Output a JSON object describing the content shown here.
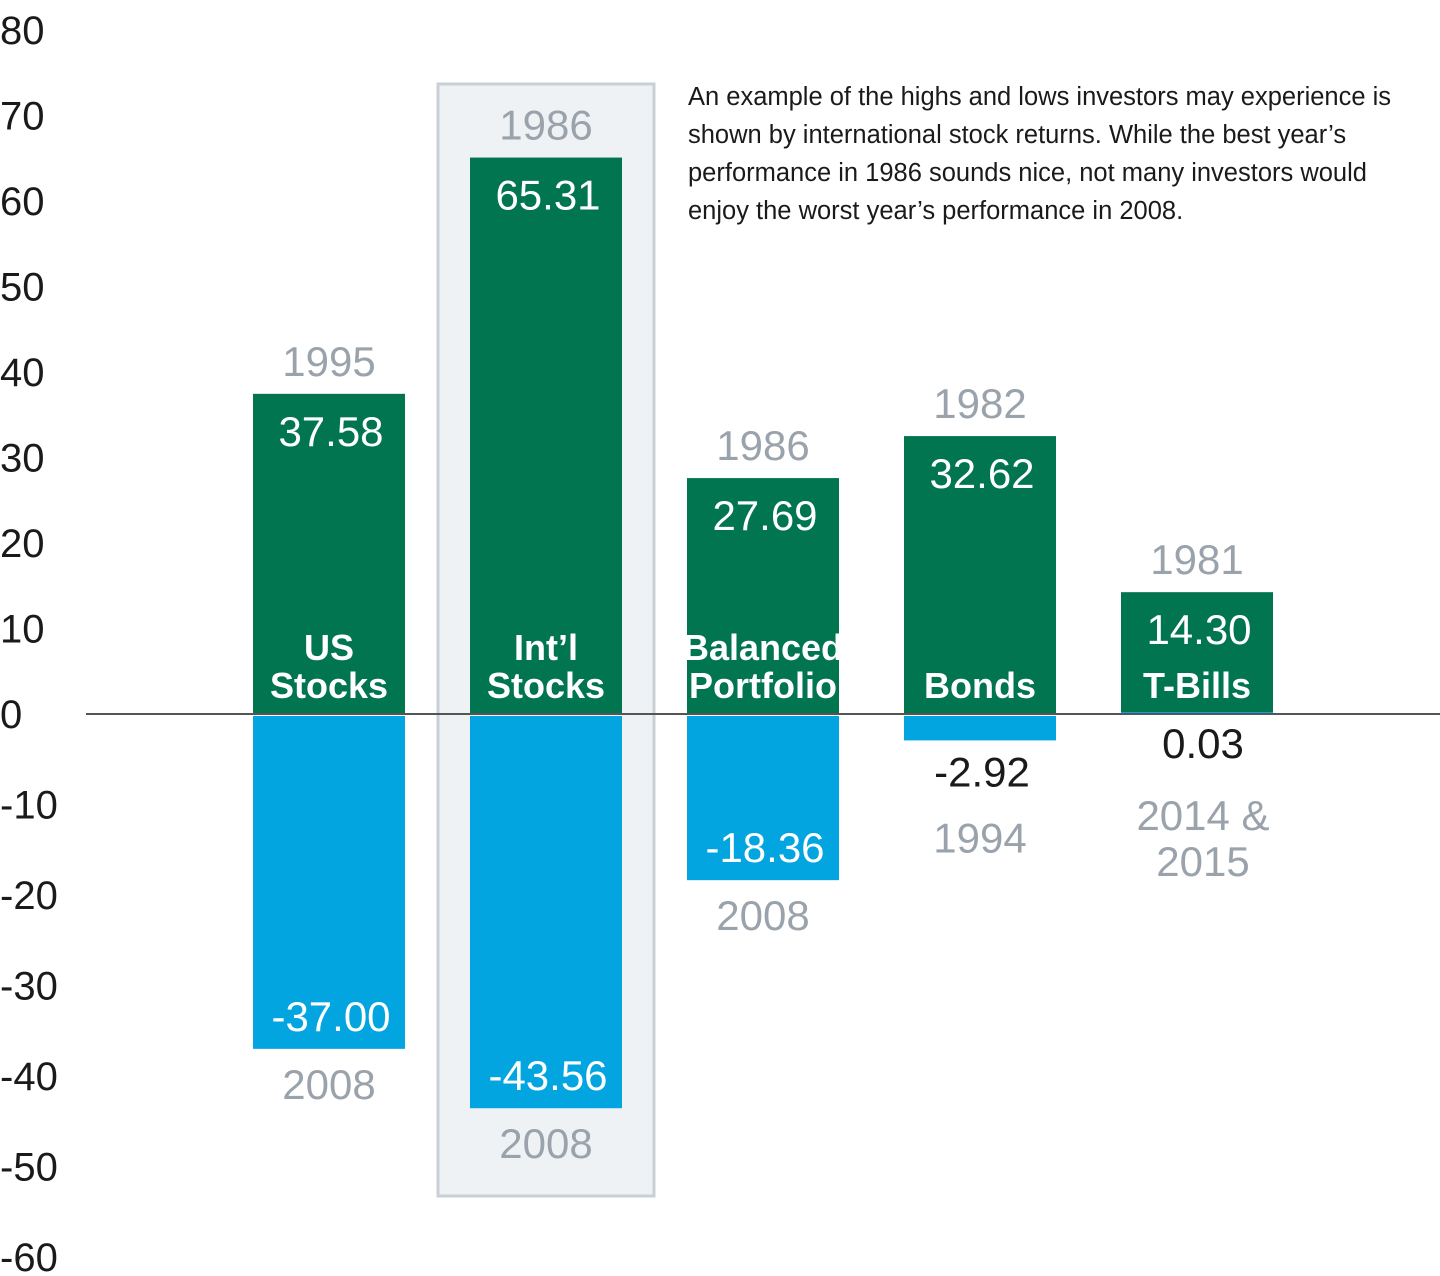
{
  "annotation": "An example of the highs and lows investors may experience is shown by international stock returns. While the best year’s performance in 1986 sounds nice, not many investors would enjoy the worst year’s performance in 2008.",
  "colors": {
    "positive": "#017550",
    "negative": "#03a5e0",
    "highlight_fill": "#eef2f4",
    "highlight_stroke": "#c8d0d6",
    "year": "#9aa3ab",
    "axis": "#555555"
  },
  "chart_data": {
    "type": "bar",
    "ylim": [
      -60,
      80
    ],
    "yticks": [
      80,
      70,
      60,
      50,
      40,
      30,
      20,
      10,
      0,
      -10,
      -20,
      -30,
      -40,
      -50,
      -60
    ],
    "categories": [
      {
        "label_lines": [
          "US",
          "Stocks"
        ],
        "best": 37.58,
        "best_label": "37.58",
        "best_year": [
          "1995"
        ],
        "worst": -37.0,
        "worst_label": "-37.00",
        "worst_year": [
          "2008"
        ],
        "highlighted": false
      },
      {
        "label_lines": [
          "Int’l",
          "Stocks"
        ],
        "best": 65.31,
        "best_label": "65.31",
        "best_year": [
          "1986"
        ],
        "worst": -43.56,
        "worst_label": "-43.56",
        "worst_year": [
          "2008"
        ],
        "highlighted": true
      },
      {
        "label_lines": [
          "Balanced",
          "Portfolio"
        ],
        "best": 27.69,
        "best_label": "27.69",
        "best_year": [
          "1986"
        ],
        "worst": -18.36,
        "worst_label": "-18.36",
        "worst_year": [
          "2008"
        ],
        "highlighted": false
      },
      {
        "label_lines": [
          "Bonds"
        ],
        "best": 32.62,
        "best_label": "32.62",
        "best_year": [
          "1982"
        ],
        "worst": -2.92,
        "worst_label": "-2.92",
        "worst_year": [
          "1994"
        ],
        "highlighted": false
      },
      {
        "label_lines": [
          "T-Bills"
        ],
        "best": 14.3,
        "best_label": "14.30",
        "best_year": [
          "1981"
        ],
        "worst": 0.03,
        "worst_label": "0.03",
        "worst_year": [
          "2014 &",
          "2015"
        ],
        "highlighted": false
      }
    ]
  }
}
